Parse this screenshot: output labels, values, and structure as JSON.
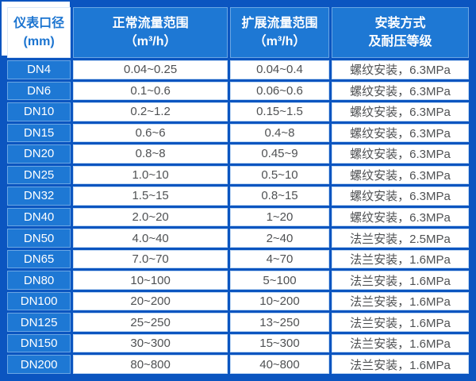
{
  "colors": {
    "grid_blue": "#0b55c0",
    "cell_blue": "#1e78d4",
    "header_text_on_white": "#1b74d0",
    "data_text": "#4f5153",
    "cell_white": "#ffffff"
  },
  "chart_data": {
    "type": "table",
    "title": "",
    "columns": [
      {
        "id": "diameter",
        "title_line1": "仪表口径",
        "title_line2": "(mm)"
      },
      {
        "id": "normal_range",
        "title_line1": "正常流量范围",
        "title_line2": "（m³/h）"
      },
      {
        "id": "extended_range",
        "title_line1": "扩展流量范围",
        "title_line2": "（m³/h）"
      },
      {
        "id": "installation",
        "title_line1": "安装方式",
        "title_line2": "及耐压等级"
      }
    ],
    "rows": [
      [
        "DN4",
        "0.04~0.25",
        "0.04~0.4",
        "螺纹安装，6.3MPa"
      ],
      [
        "DN6",
        "0.1~0.6",
        "0.06~0.6",
        "螺纹安装，6.3MPa"
      ],
      [
        "DN10",
        "0.2~1.2",
        "0.15~1.5",
        "螺纹安装，6.3MPa"
      ],
      [
        "DN15",
        "0.6~6",
        "0.4~8",
        "螺纹安装，6.3MPa"
      ],
      [
        "DN20",
        "0.8~8",
        "0.45~9",
        "螺纹安装，6.3MPa"
      ],
      [
        "DN25",
        "1.0~10",
        "0.5~10",
        "螺纹安装，6.3MPa"
      ],
      [
        "DN32",
        "1.5~15",
        "0.8~15",
        "螺纹安装，6.3MPa"
      ],
      [
        "DN40",
        "2.0~20",
        "1~20",
        "螺纹安装，6.3MPa"
      ],
      [
        "DN50",
        "4.0~40",
        "2~40",
        "法兰安装，2.5MPa"
      ],
      [
        "DN65",
        "7.0~70",
        "4~70",
        "法兰安装，1.6MPa"
      ],
      [
        "DN80",
        "10~100",
        "5~100",
        "法兰安装，1.6MPa"
      ],
      [
        "DN100",
        "20~200",
        "10~200",
        "法兰安装，1.6MPa"
      ],
      [
        "DN125",
        "25~250",
        "13~250",
        "法兰安装，1.6MPa"
      ],
      [
        "DN150",
        "30~300",
        "15~300",
        "法兰安装，1.6MPa"
      ],
      [
        "DN200",
        "80~800",
        "40~800",
        "法兰安装，1.6MPa"
      ]
    ]
  }
}
